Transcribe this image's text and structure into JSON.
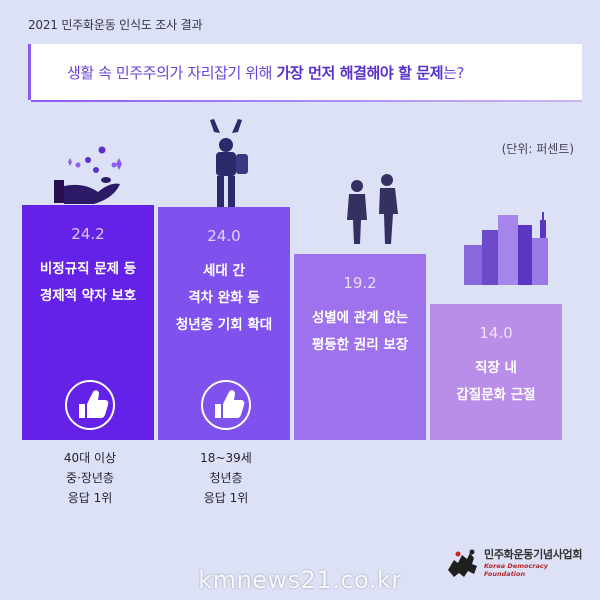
{
  "header": {
    "title": "2021 민주화운동 인식도 조사 결과"
  },
  "question": {
    "before": "생활 속 민주주의가 자리잡기 위해 ",
    "emphasis": "가장 먼저 해결해야 할 문제",
    "after": "는?"
  },
  "unit": "(단위: 퍼센트)",
  "chart_data": {
    "type": "bar",
    "categories": [
      [
        "비정규직 문제 등",
        "경제적 약자 보호"
      ],
      [
        "세대 간",
        "격차 완화 등",
        "청년층 기회 확대"
      ],
      [
        "성별에 관계 없는",
        "평등한 권리 보장"
      ],
      [
        "직장 내",
        "갑질문화 근절"
      ]
    ],
    "values": [
      24.2,
      24.0,
      19.2,
      14.0
    ],
    "value_labels": [
      "24.2",
      "24.0",
      "19.2",
      "14.0"
    ],
    "colors": [
      "#6422e8",
      "#7f52ed",
      "#9d72ec",
      "#b98ee8"
    ],
    "ylim": [
      0,
      24.2
    ]
  },
  "notes": [
    [
      "40대 이상",
      "중·장년층",
      "응답 1위"
    ],
    [
      "18~39세",
      "청년층",
      "응답 1위"
    ]
  ],
  "footer": {
    "org_ko": "민주화운동기념사업회",
    "org_en": "Korea Democracy Foundation"
  },
  "watermark": "kmnews21.co.kr"
}
